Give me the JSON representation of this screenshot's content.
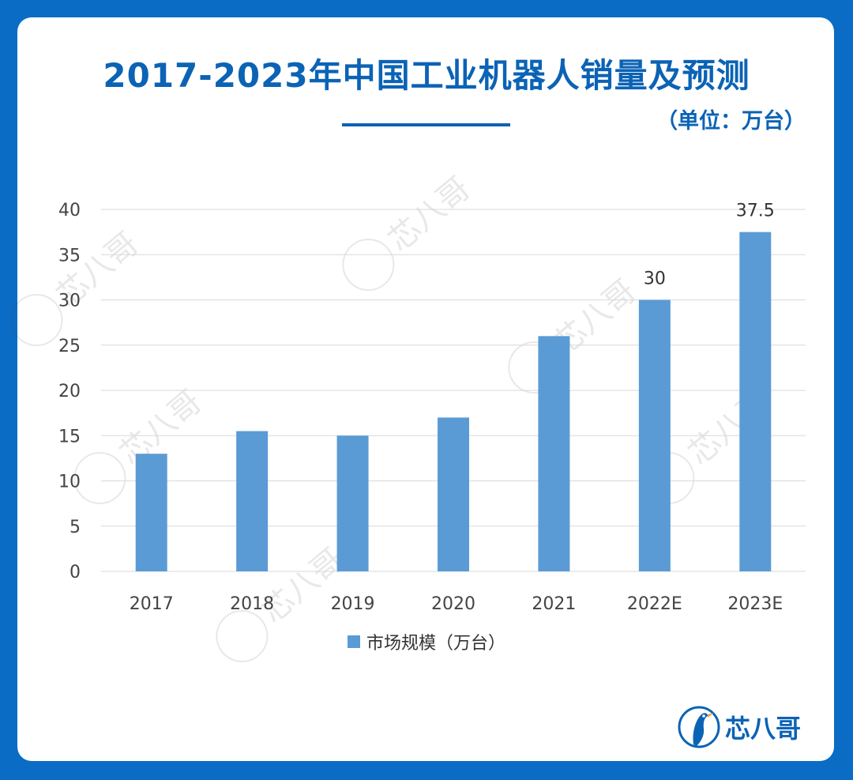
{
  "page": {
    "title": "2017-2023年中国工业机器人销量及预测",
    "unit": "（单位：万台）",
    "brand": "芯八哥",
    "watermark": "芯八哥"
  },
  "colors": {
    "background": "#0a6cc4",
    "title": "#0b63b5",
    "bar": "#5b9bd5",
    "grid": "#d9d9d9"
  },
  "chart_data": {
    "type": "bar",
    "categories": [
      "2017",
      "2018",
      "2019",
      "2020",
      "2021",
      "2022E",
      "2023E"
    ],
    "series": [
      {
        "name": "市场规模（万台）",
        "values": [
          13,
          15.5,
          15,
          17,
          26,
          30,
          37.5
        ]
      }
    ],
    "data_labels": [
      "",
      "",
      "",
      "",
      "",
      "30",
      "37.5"
    ],
    "yticks": [
      0,
      5,
      10,
      15,
      20,
      25,
      30,
      35,
      40
    ],
    "ylim": [
      0,
      40
    ],
    "grid": true,
    "legend_position": "bottom"
  }
}
